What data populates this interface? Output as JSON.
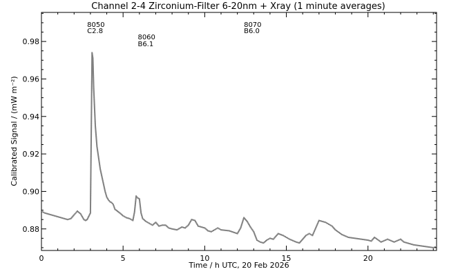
{
  "chart_data": {
    "type": "scatter",
    "title": "Channel 2-4   Zirconium-Filter   6-20nm + Xray   (1 minute averages)",
    "xlabel": "Time / h UTC, 20 Feb 2026",
    "ylabel": "Calibrated Signal / (mW m⁻²)",
    "xlim": [
      0,
      24.2
    ],
    "ylim": [
      0.8685,
      0.9955
    ],
    "xticks": [
      0,
      5,
      10,
      15,
      20
    ],
    "xtick_labels": [
      "0",
      "5",
      "10",
      "15",
      "20"
    ],
    "yticks": [
      0.88,
      0.9,
      0.92,
      0.94,
      0.96,
      0.98
    ],
    "ytick_labels": [
      "0.88",
      "0.90",
      "0.92",
      "0.94",
      "0.96",
      "0.98"
    ],
    "grid": false,
    "marker_color": "#808080",
    "annotations": [
      {
        "id": "8050",
        "class": "C2.8",
        "x": 2.8
      },
      {
        "id": "8060",
        "class": "B6.1",
        "x": 5.9
      },
      {
        "id": "8070",
        "class": "B6.0",
        "x": 12.4
      }
    ],
    "series": [
      {
        "x": [
          0,
          0.2,
          0.4,
          0.6,
          0.8,
          1.0,
          1.2,
          1.4,
          1.6,
          1.8,
          2.0,
          2.1,
          2.2,
          2.4,
          2.5,
          2.6,
          2.7,
          2.8,
          3.0,
          3.1,
          3.15,
          3.2,
          3.3,
          3.4,
          3.5,
          3.6,
          3.7,
          3.8,
          3.9,
          4.0,
          4.1,
          4.2,
          4.3,
          4.4,
          4.5,
          4.8,
          5.0,
          5.2,
          5.4,
          5.6,
          5.7,
          5.8,
          5.9,
          6.0,
          6.1,
          6.2,
          6.4,
          6.6,
          6.8,
          7.0,
          7.2,
          7.4,
          7.6,
          7.8,
          8.0,
          8.3,
          8.6,
          8.8,
          9.0,
          9.2,
          9.4,
          9.6,
          10.0,
          10.2,
          10.4,
          10.6,
          10.8,
          11.0,
          11.5,
          12.0,
          12.2,
          12.4,
          12.6,
          12.8,
          13.0,
          13.2,
          13.4,
          13.6,
          13.8,
          14.0,
          14.2,
          14.5,
          14.8,
          15.0,
          15.2,
          15.6,
          15.8,
          16.0,
          16.2,
          16.4,
          16.6,
          16.8,
          17.0,
          17.2,
          17.4,
          17.6,
          17.8,
          18.0,
          18.4,
          18.8,
          19.2,
          19.6,
          20.0,
          20.2,
          20.4,
          20.8,
          21.2,
          21.6,
          22.0,
          22.2,
          22.4,
          22.8,
          23.2,
          23.6,
          24.0,
          24.2
        ],
        "y": [
          0.8895,
          0.8885,
          0.888,
          0.8875,
          0.887,
          0.8865,
          0.886,
          0.8855,
          0.885,
          0.8855,
          0.8875,
          0.8885,
          0.8895,
          0.888,
          0.8865,
          0.885,
          0.8845,
          0.885,
          0.8885,
          0.974,
          0.971,
          0.955,
          0.935,
          0.924,
          0.918,
          0.912,
          0.908,
          0.904,
          0.9,
          0.897,
          0.8955,
          0.8945,
          0.894,
          0.893,
          0.8905,
          0.8885,
          0.887,
          0.886,
          0.8855,
          0.8845,
          0.889,
          0.8975,
          0.8965,
          0.896,
          0.8885,
          0.8855,
          0.884,
          0.883,
          0.882,
          0.8835,
          0.8815,
          0.882,
          0.882,
          0.8805,
          0.88,
          0.8795,
          0.881,
          0.8805,
          0.882,
          0.885,
          0.8845,
          0.8815,
          0.8805,
          0.879,
          0.8785,
          0.8795,
          0.8805,
          0.8795,
          0.879,
          0.8775,
          0.8805,
          0.886,
          0.884,
          0.881,
          0.8785,
          0.874,
          0.873,
          0.8725,
          0.874,
          0.875,
          0.8745,
          0.8775,
          0.8765,
          0.8755,
          0.8745,
          0.873,
          0.8725,
          0.8745,
          0.8765,
          0.8775,
          0.8765,
          0.8805,
          0.8845,
          0.884,
          0.8835,
          0.8825,
          0.8815,
          0.8795,
          0.877,
          0.8755,
          0.875,
          0.8745,
          0.874,
          0.8735,
          0.8755,
          0.873,
          0.8745,
          0.873,
          0.8745,
          0.873,
          0.8725,
          0.8715,
          0.871,
          0.8705,
          0.87,
          0.8705
        ]
      }
    ]
  }
}
